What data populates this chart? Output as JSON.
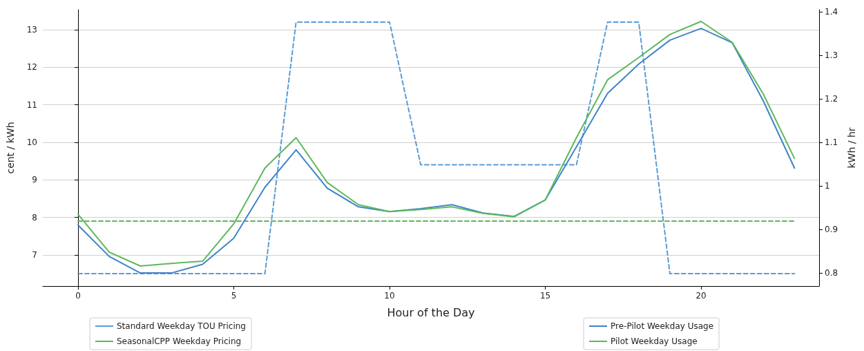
{
  "chart_data": {
    "type": "line",
    "xlabel": "Hour of the Day",
    "ylabel": "cent / kWh",
    "y2label": "kWh / hr",
    "x": [
      0,
      1,
      2,
      3,
      4,
      5,
      6,
      7,
      8,
      9,
      10,
      11,
      12,
      13,
      14,
      15,
      16,
      17,
      18,
      19,
      20,
      21,
      22,
      23
    ],
    "series": [
      {
        "name": "Standard Weekday TOU Pricing",
        "color": "#5b9bd5",
        "line_style": "dashed",
        "values": [
          6.5,
          6.5,
          6.5,
          6.5,
          6.5,
          6.5,
          6.5,
          13.2,
          13.2,
          13.2,
          13.2,
          9.4,
          9.4,
          9.4,
          9.4,
          9.4,
          9.4,
          13.2,
          13.2,
          6.5,
          6.5,
          6.5,
          6.5,
          6.5
        ]
      },
      {
        "name": "SeasonalCPP Weekday Pricing",
        "color": "#5cb85c",
        "line_style": "dashed",
        "values": [
          7.9,
          7.9,
          7.9,
          7.9,
          7.9,
          7.9,
          7.9,
          7.9,
          7.9,
          7.9,
          7.9,
          7.9,
          7.9,
          7.9,
          7.9,
          7.9,
          7.9,
          7.9,
          7.9,
          7.9,
          7.9,
          7.9,
          7.9,
          7.9
        ]
      },
      {
        "name": "Pre-Pilot Weekday Usage",
        "axis": "y2",
        "color": "#3f84c8",
        "line_style": "solid",
        "values": [
          0.91,
          0.838,
          0.8,
          0.8,
          0.82,
          0.88,
          0.997,
          1.083,
          0.995,
          0.952,
          0.941,
          0.948,
          0.957,
          0.938,
          0.93,
          0.968,
          1.09,
          1.213,
          1.28,
          1.335,
          1.362,
          1.329,
          1.195,
          1.041
        ]
      },
      {
        "name": "Pilot Weekday Usage",
        "axis": "y2",
        "color": "#5cb85c",
        "line_style": "solid",
        "values": [
          0.935,
          0.848,
          0.816,
          0.822,
          0.827,
          0.913,
          1.041,
          1.111,
          1.008,
          0.957,
          0.941,
          0.946,
          0.952,
          0.937,
          0.929,
          0.968,
          1.111,
          1.244,
          1.295,
          1.348,
          1.378,
          1.33,
          1.211,
          1.063
        ]
      }
    ],
    "xlim": [
      -1.13,
      23.79
    ],
    "xticks": [
      0,
      5,
      10,
      15,
      20
    ],
    "ylim": [
      6.17,
      13.53
    ],
    "yticks": [
      7,
      8,
      9,
      10,
      11,
      12,
      13
    ],
    "y2lim": [
      0.77,
      1.405
    ],
    "y2ticks": [
      0.8,
      0.9,
      1.0,
      1.1,
      1.2,
      1.3,
      1.4
    ],
    "grid": "y",
    "legend": "bottom",
    "marker": "none"
  }
}
